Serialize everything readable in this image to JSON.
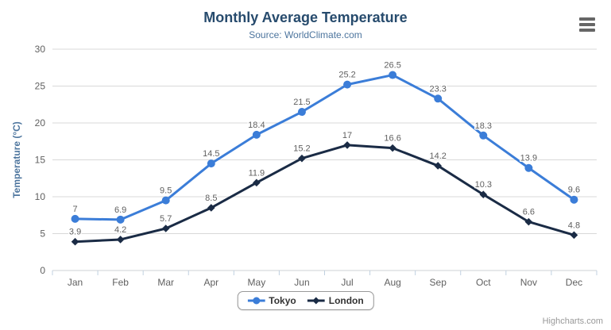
{
  "icons": {
    "menu_icon": "hamburger-icon"
  },
  "chart_data": {
    "type": "line",
    "title": "Monthly Average Temperature",
    "subtitle": "Source: WorldClimate.com",
    "categories": [
      "Jan",
      "Feb",
      "Mar",
      "Apr",
      "May",
      "Jun",
      "Jul",
      "Aug",
      "Sep",
      "Oct",
      "Nov",
      "Dec"
    ],
    "series": [
      {
        "name": "Tokyo",
        "color": "#3b7dd8",
        "marker": "circle",
        "values": [
          7,
          6.9,
          9.5,
          14.5,
          18.4,
          21.5,
          25.2,
          26.5,
          23.3,
          18.3,
          13.9,
          9.6
        ]
      },
      {
        "name": "London",
        "color": "#1a2b45",
        "marker": "diamond",
        "values": [
          3.9,
          4.2,
          5.7,
          8.5,
          11.9,
          15.2,
          17,
          16.6,
          14.2,
          10.3,
          6.6,
          4.8
        ]
      }
    ],
    "xlabel": "",
    "ylabel": "Temperature (°C)",
    "ylim": [
      0,
      30
    ],
    "ytick_step": 5,
    "grid": true,
    "data_labels": true,
    "legend_position": "bottom",
    "credit": "Highcharts.com"
  }
}
